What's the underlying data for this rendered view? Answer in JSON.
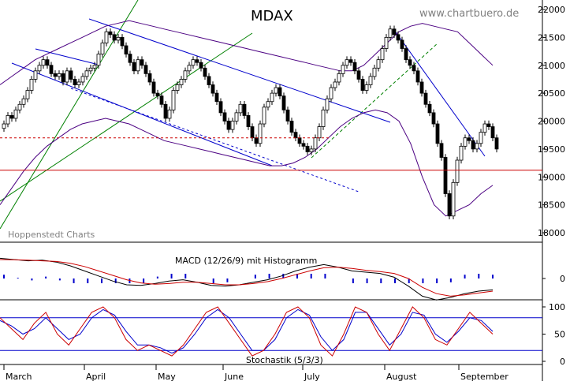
{
  "chart_data": {
    "type": "candlestick",
    "title": "MDAX",
    "watermark": "www.chartbuero.de",
    "source": "Hoppenstedt Charts",
    "months": [
      "March",
      "April",
      "May",
      "June",
      "July",
      "August",
      "September"
    ],
    "price_axis": {
      "ylim": [
        17600,
        22150
      ],
      "ticks": [
        18000,
        18500,
        19000,
        19500,
        20000,
        20500,
        21000,
        21500,
        22000
      ]
    },
    "reference_levels": {
      "solid_red": 19120,
      "dashed_red": 19700
    },
    "candles_close": [
      19950,
      20100,
      20050,
      20200,
      20300,
      20400,
      20550,
      20750,
      20900,
      21000,
      21100,
      21000,
      20850,
      20800,
      20850,
      20700,
      20900,
      20750,
      20650,
      20700,
      20800,
      20900,
      20950,
      21000,
      21200,
      21400,
      21600,
      21550,
      21450,
      21500,
      21350,
      21200,
      21050,
      20900,
      21100,
      21000,
      20850,
      20700,
      20500,
      20450,
      20300,
      20050,
      20200,
      20550,
      20650,
      20750,
      20900,
      21000,
      21100,
      21050,
      20950,
      20800,
      20650,
      20500,
      20350,
      20150,
      20000,
      19850,
      20000,
      20150,
      20300,
      20100,
      19900,
      19700,
      19600,
      19950,
      20250,
      20350,
      20500,
      20600,
      20450,
      20200,
      20000,
      19800,
      19700,
      19600,
      19550,
      19450,
      19500,
      19700,
      19900,
      20200,
      20400,
      20600,
      20700,
      20850,
      21000,
      21100,
      21050,
      20900,
      20750,
      20550,
      20650,
      20800,
      20950,
      21100,
      21300,
      21500,
      21650,
      21550,
      21450,
      21300,
      21100,
      21000,
      20900,
      20700,
      20500,
      20300,
      20150,
      19950,
      19600,
      19350,
      18700,
      18300,
      18900,
      19300,
      19550,
      19700,
      19650,
      19500,
      19600,
      19800,
      19950,
      19900,
      19700,
      19500
    ],
    "bollinger_upper": [
      20650,
      20800,
      20950,
      21100,
      21200,
      21300,
      21400,
      21500,
      21600,
      21700,
      21750,
      21800,
      21750,
      21700,
      21650,
      21600,
      21550,
      21500,
      21450,
      21400,
      21350,
      21300,
      21250,
      21200,
      21150,
      21100,
      21050,
      21000,
      20950,
      20900,
      20900,
      21000,
      21200,
      21400,
      21600,
      21700,
      21750,
      21700,
      21650,
      21600,
      21400,
      21200,
      21000
    ],
    "bollinger_lower": [
      18500,
      18800,
      19100,
      19350,
      19550,
      19700,
      19850,
      19950,
      20000,
      20050,
      20000,
      19950,
      19850,
      19750,
      19650,
      19600,
      19550,
      19500,
      19450,
      19400,
      19350,
      19300,
      19250,
      19200,
      19200,
      19250,
      19350,
      19500,
      19700,
      19900,
      20050,
      20150,
      20200,
      20150,
      20000,
      19600,
      19000,
      18500,
      18300,
      18400,
      18500,
      18700,
      18850
    ],
    "macd": {
      "label": "MACD (12/26/9) mit Histogramm",
      "ticks": [
        0
      ],
      "macd_line": [
        160,
        150,
        140,
        145,
        130,
        100,
        60,
        20,
        -20,
        -50,
        -55,
        -40,
        -20,
        -10,
        -30,
        -55,
        -60,
        -50,
        -30,
        -10,
        20,
        60,
        90,
        110,
        90,
        60,
        50,
        40,
        10,
        -60,
        -140,
        -170,
        -150,
        -120,
        -100,
        -90
      ],
      "signal_line": [
        150,
        148,
        145,
        140,
        135,
        120,
        95,
        60,
        25,
        -10,
        -35,
        -45,
        -40,
        -30,
        -30,
        -40,
        -50,
        -50,
        -40,
        -25,
        0,
        30,
        60,
        85,
        90,
        80,
        65,
        55,
        40,
        0,
        -70,
        -120,
        -140,
        -130,
        -115,
        -100
      ]
    },
    "stochastic": {
      "label": "Stochastik (5/3/3)",
      "ticks": [
        0,
        50,
        100
      ],
      "levels": [
        20,
        80
      ],
      "k": [
        80,
        60,
        40,
        70,
        90,
        50,
        30,
        60,
        90,
        100,
        80,
        40,
        20,
        30,
        20,
        10,
        30,
        60,
        90,
        100,
        70,
        40,
        10,
        20,
        50,
        90,
        100,
        80,
        30,
        10,
        50,
        100,
        90,
        50,
        20,
        60,
        100,
        80,
        40,
        30,
        60,
        90,
        70,
        50
      ],
      "d": [
        75,
        65,
        50,
        60,
        80,
        60,
        40,
        50,
        80,
        95,
        85,
        55,
        30,
        30,
        25,
        15,
        25,
        50,
        80,
        95,
        80,
        50,
        20,
        20,
        40,
        80,
        95,
        85,
        45,
        20,
        40,
        90,
        90,
        60,
        30,
        50,
        90,
        85,
        50,
        35,
        55,
        80,
        75,
        55
      ]
    }
  }
}
